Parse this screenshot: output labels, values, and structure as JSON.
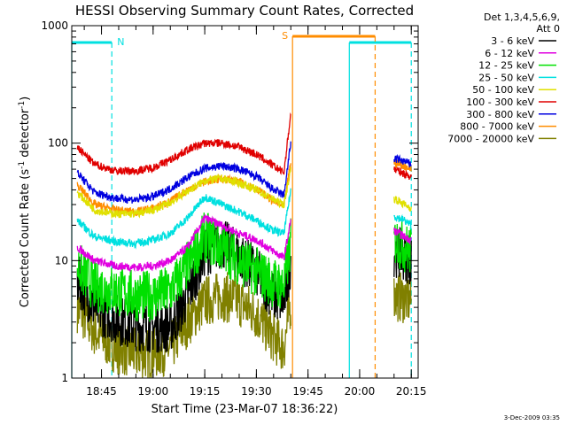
{
  "chart_data": {
    "type": "line",
    "title": "HESSI Observing Summary Count Rates, Corrected",
    "xlabel": "Start Time (23-Mar-07 18:36:22)",
    "ylabel_main": "Corrected Count Rate (s",
    "ylabel_sup1": "-1",
    "ylabel_mid": " detector",
    "ylabel_sup2": "-1",
    "ylabel_end": ")",
    "yscale": "log",
    "ylim": [
      1,
      1000
    ],
    "xlim": [
      "18:36:22",
      "20:17:00"
    ],
    "yticks": [
      {
        "label": "1",
        "value": 1
      },
      {
        "label": "10",
        "value": 10
      },
      {
        "label": "100",
        "value": 100
      },
      {
        "label": "1000",
        "value": 1000
      }
    ],
    "xticks": [
      {
        "label": "18:45",
        "t": "18:45"
      },
      {
        "label": "19:00",
        "t": "19:00"
      },
      {
        "label": "19:15",
        "t": "19:15"
      },
      {
        "label": "19:30",
        "t": "19:30"
      },
      {
        "label": "19:45",
        "t": "19:45"
      },
      {
        "label": "20:00",
        "t": "20:00"
      },
      {
        "label": "20:15",
        "t": "20:15"
      }
    ],
    "legend_title_1": "Det 1,3,4,5,6,9,",
    "legend_title_2": "Att 0",
    "legend_position": "right",
    "series": [
      {
        "name": "3 - 6 keV",
        "color": "#000000",
        "x": [
          "18:38",
          "18:43",
          "18:49",
          "18:55",
          "19:00",
          "19:05",
          "19:10",
          "19:15",
          "19:20",
          "19:25",
          "19:30",
          "19:35",
          "19:38",
          "19:40",
          "20:10",
          "20:13",
          "20:15"
        ],
        "y": [
          7,
          4,
          3.2,
          2.8,
          2.7,
          2.7,
          5,
          12,
          14,
          11,
          8,
          5,
          4.5,
          10,
          12,
          11,
          10
        ]
      },
      {
        "name": "6 - 12 keV",
        "color": "#e000e0",
        "x": [
          "18:38",
          "18:43",
          "18:49",
          "18:55",
          "19:00",
          "19:05",
          "19:10",
          "19:15",
          "19:20",
          "19:25",
          "19:30",
          "19:35",
          "19:38",
          "19:40",
          "20:10",
          "20:13",
          "20:15"
        ],
        "y": [
          13,
          10,
          9,
          8.8,
          9,
          10,
          13,
          23,
          20,
          17,
          15,
          12,
          10.5,
          22,
          18,
          16,
          15
        ]
      },
      {
        "name": "12 - 25 keV",
        "color": "#00e000",
        "x": [
          "18:38",
          "18:43",
          "18:49",
          "18:55",
          "19:00",
          "19:05",
          "19:10",
          "19:15",
          "19:20",
          "19:25",
          "19:30",
          "19:35",
          "19:38",
          "19:40",
          "20:10",
          "20:13",
          "20:15"
        ],
        "y": [
          9,
          6,
          5.5,
          5,
          5,
          5.5,
          9,
          16,
          13,
          10,
          8,
          6.5,
          6,
          14,
          15,
          13,
          12
        ]
      },
      {
        "name": "25 - 50 keV",
        "color": "#00e0e0",
        "x": [
          "18:38",
          "18:43",
          "18:49",
          "18:55",
          "19:00",
          "19:05",
          "19:10",
          "19:15",
          "19:20",
          "19:25",
          "19:30",
          "19:35",
          "19:38",
          "19:40",
          "20:10",
          "20:13",
          "20:15"
        ],
        "y": [
          22,
          16,
          14.5,
          14,
          15,
          17,
          23,
          35,
          30,
          26,
          22,
          18,
          17,
          40,
          24,
          22,
          20
        ]
      },
      {
        "name": "50 - 100 keV",
        "color": "#e0e000",
        "x": [
          "18:38",
          "18:43",
          "18:49",
          "18:55",
          "19:00",
          "19:05",
          "19:10",
          "19:15",
          "19:20",
          "19:25",
          "19:30",
          "19:35",
          "19:38",
          "19:40",
          "20:10",
          "20:13",
          "20:15"
        ],
        "y": [
          38,
          27,
          25,
          25,
          27,
          31,
          39,
          48,
          50,
          46,
          40,
          33,
          30,
          60,
          34,
          30,
          28
        ]
      },
      {
        "name": "100 - 300 keV",
        "color": "#e00000",
        "x": [
          "18:38",
          "18:43",
          "18:49",
          "18:55",
          "19:00",
          "19:05",
          "19:10",
          "19:15",
          "19:20",
          "19:25",
          "19:30",
          "19:35",
          "19:38",
          "19:40",
          "20:10",
          "20:13",
          "20:15"
        ],
        "y": [
          92,
          66,
          58,
          58,
          62,
          72,
          88,
          100,
          100,
          93,
          80,
          64,
          56,
          180,
          60,
          55,
          52
        ]
      },
      {
        "name": "300 - 800 keV",
        "color": "#0000e0",
        "x": [
          "18:38",
          "18:43",
          "18:49",
          "18:55",
          "19:00",
          "19:05",
          "19:10",
          "19:15",
          "19:20",
          "19:25",
          "19:30",
          "19:35",
          "19:38",
          "19:40",
          "20:10",
          "20:13",
          "20:15"
        ],
        "y": [
          56,
          38,
          34,
          33,
          35,
          41,
          51,
          61,
          64,
          60,
          52,
          40,
          36,
          100,
          74,
          70,
          66
        ]
      },
      {
        "name": "800 - 7000 keV",
        "color": "#ff8c00",
        "x": [
          "18:38",
          "18:43",
          "18:49",
          "18:55",
          "19:00",
          "19:05",
          "19:10",
          "19:15",
          "19:20",
          "19:25",
          "19:30",
          "19:35",
          "19:38",
          "19:40",
          "20:10",
          "20:13",
          "20:15"
        ],
        "y": [
          44,
          30,
          27,
          26,
          28,
          32,
          40,
          47,
          50,
          47,
          41,
          32,
          29,
          70,
          68,
          64,
          60
        ]
      },
      {
        "name": "7000 - 20000 keV",
        "color": "#808000",
        "x": [
          "18:38",
          "18:43",
          "18:49",
          "18:55",
          "19:00",
          "19:05",
          "19:10",
          "19:15",
          "19:20",
          "19:25",
          "19:30",
          "19:35",
          "19:38",
          "19:40",
          "20:10",
          "20:13",
          "20:15"
        ],
        "y": [
          4,
          2.5,
          1.8,
          1.6,
          1.6,
          1.8,
          3,
          4.5,
          5,
          4.5,
          3.5,
          2.2,
          1.8,
          4.5,
          5,
          4.8,
          4.5
        ]
      }
    ],
    "annotations": [
      {
        "label": "N",
        "color": "#00e0e0"
      },
      {
        "label": "S",
        "color": "#ff8c00"
      }
    ],
    "night_intervals": [
      {
        "start": "18:36:22",
        "end": "18:48:00",
        "color": "#00e0e0"
      },
      {
        "start": "19:57:00",
        "end": "20:15:00",
        "color": "#00e0e0"
      }
    ],
    "saa_intervals": [
      {
        "start": "19:40:30",
        "end": "20:04:30",
        "color": "#ff8c00"
      }
    ],
    "grid": false,
    "footer_date": "3-Dec-2009 03:35"
  }
}
